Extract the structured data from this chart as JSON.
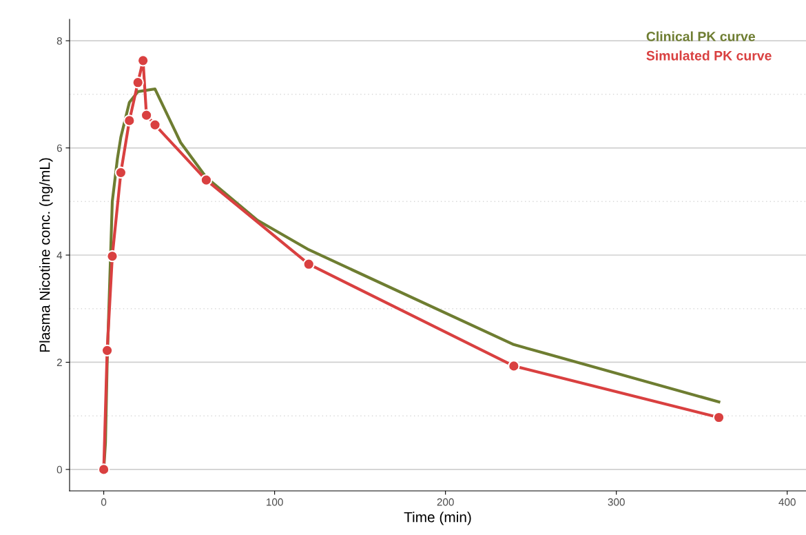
{
  "chart_data": {
    "type": "line",
    "xlabel": "Time (min)",
    "ylabel": "Plasma Nicotine conc. (ng/mL)",
    "xlim": [
      -20,
      411
    ],
    "xticks": [
      0,
      100,
      200,
      300,
      400
    ],
    "ylim": [
      -0.4,
      8.4
    ],
    "yticks": [
      0,
      2,
      4,
      6,
      8
    ],
    "grid": "y",
    "legend": "top right",
    "series": [
      {
        "name": "Clinical PK curve",
        "color": "#6e7d31",
        "marker": "none",
        "x": [
          0,
          1,
          2,
          5,
          8,
          10,
          15,
          20,
          30,
          45,
          60,
          90,
          120,
          240,
          360
        ],
        "values": [
          0,
          0.5,
          2.0,
          5.0,
          5.8,
          6.2,
          6.85,
          7.05,
          7.1,
          6.1,
          5.45,
          4.65,
          4.1,
          2.33,
          1.26
        ]
      },
      {
        "name": "Simulated PK curve",
        "color": "#d94040",
        "marker": "circle",
        "x": [
          0,
          2,
          5,
          10,
          15,
          20,
          23,
          25,
          30,
          60,
          120,
          240,
          360
        ],
        "values": [
          0,
          2.22,
          3.98,
          5.54,
          6.51,
          7.22,
          7.63,
          6.61,
          6.43,
          5.4,
          3.83,
          1.93,
          0.97
        ]
      }
    ]
  }
}
